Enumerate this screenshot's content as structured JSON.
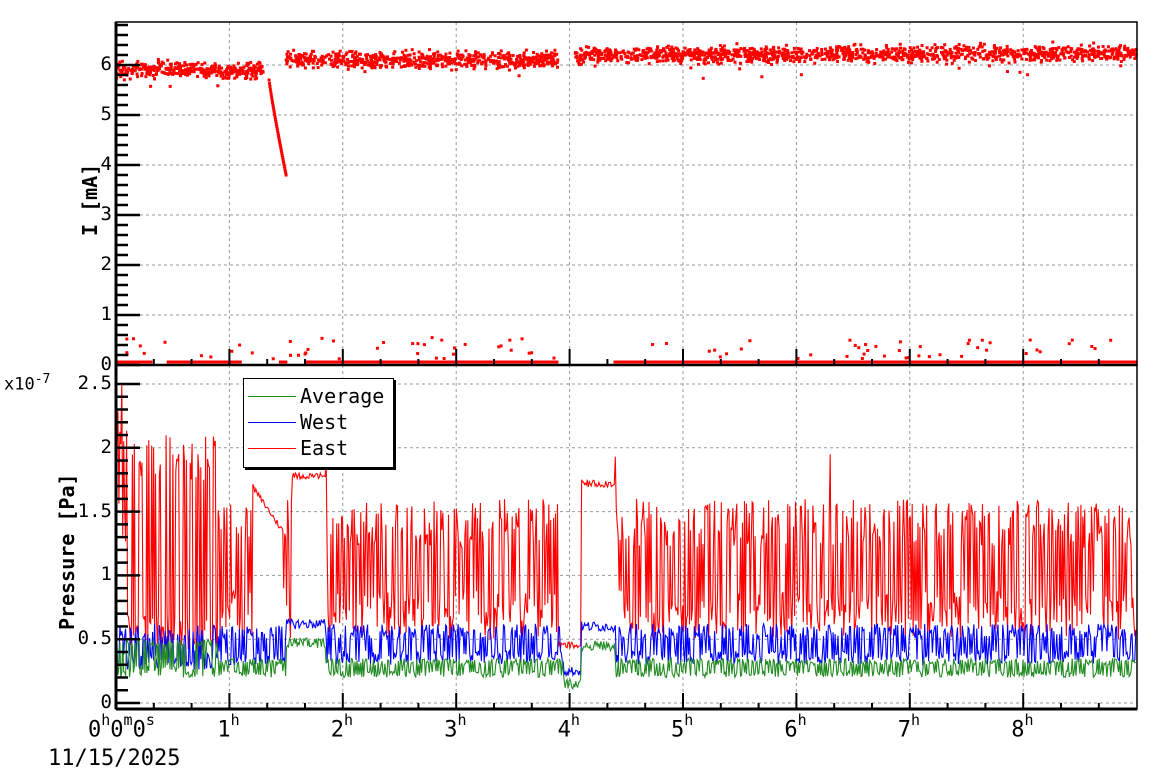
{
  "chart_data": [
    {
      "type": "scatter",
      "title": "",
      "ylabel": "I [mA]",
      "xlabel": "",
      "ylim": [
        0,
        6.86
      ],
      "xlim_hours": [
        0,
        9.0
      ],
      "yticks": [
        "0",
        "1",
        "2",
        "3",
        "4",
        "5",
        "6"
      ],
      "grid": true,
      "color": "#ff0000",
      "series": [
        {
          "name": "I",
          "segments": [
            {
              "x_start_h": 0.0,
              "x_end_h": 1.3,
              "level": 5.95,
              "spread": 0.2,
              "note": "noisy scatter around 5.9-6.1"
            },
            {
              "x_start_h": 1.35,
              "x_end_h": 1.5,
              "level_start": 5.7,
              "level_end": 3.8,
              "note": "linear decay drop"
            },
            {
              "x_start_h": 1.5,
              "x_end_h": 3.9,
              "level": 6.1,
              "spread": 0.2
            },
            {
              "x_start_h": 4.05,
              "x_end_h": 9.0,
              "level": 6.15,
              "spread": 0.2
            }
          ],
          "baseline_points": {
            "level": 0.05,
            "scattered_outliers_max": 0.55
          }
        }
      ]
    },
    {
      "type": "line",
      "title": "",
      "ylabel": "Pressure [Pa]",
      "y_multiplier": "x10^-7",
      "ylim": [
        0,
        2.55
      ],
      "yticks": [
        "0",
        "0.5",
        "1",
        "1.5",
        "2",
        "2.5"
      ],
      "x_ticks": [
        "0h0m0s",
        "1h",
        "2h",
        "3h",
        "4h",
        "5h",
        "6h",
        "7h",
        "8h"
      ],
      "x_date": "11/15/2025",
      "grid": true,
      "legend_position": "top-left",
      "series": [
        {
          "name": "Average",
          "color": "#228b22",
          "typical_low": 0.2,
          "typical_high": 0.35,
          "plateaus": [
            {
              "from_h": 1.5,
              "to_h": 1.85,
              "value": 0.47
            },
            {
              "from_h": 3.95,
              "to_h": 4.1,
              "value": 0.15
            },
            {
              "from_h": 4.1,
              "to_h": 4.4,
              "value": 0.45
            }
          ]
        },
        {
          "name": "West",
          "color": "#0000ff",
          "typical_low": 0.3,
          "typical_high": 0.62,
          "plateaus": [
            {
              "from_h": 1.5,
              "to_h": 1.85,
              "value": 0.62
            },
            {
              "from_h": 3.95,
              "to_h": 4.1,
              "value": 0.25
            },
            {
              "from_h": 4.1,
              "to_h": 4.4,
              "value": 0.6
            }
          ]
        },
        {
          "name": "East",
          "color": "#ff0000",
          "typical_low": 0.5,
          "typical_high": 1.6,
          "plateaus": [
            {
              "from_h": 1.55,
              "to_h": 1.85,
              "value": 1.78
            },
            {
              "from_h": 3.9,
              "to_h": 4.1,
              "value": 0.45
            },
            {
              "from_h": 4.1,
              "to_h": 4.4,
              "value": 1.72
            }
          ],
          "peaks": [
            {
              "x_h": 0.05,
              "value": 2.5
            },
            {
              "x_h": 1.85,
              "value": 1.95
            },
            {
              "x_h": 4.4,
              "value": 1.93
            },
            {
              "x_h": 6.3,
              "value": 1.95
            }
          ]
        }
      ]
    }
  ],
  "top_pad": {
    "y_axis_title": "I [mA]",
    "y_ticks": [
      "0",
      "1",
      "2",
      "3",
      "4",
      "5",
      "6"
    ]
  },
  "bottom_pad": {
    "y_axis_title": "Pressure [Pa]",
    "y_exponent_base": "x10",
    "y_exponent_power": "-7",
    "y_ticks": [
      "0",
      "0.5",
      "1",
      "1.5",
      "2",
      "2.5"
    ],
    "legend": [
      {
        "label": "Average",
        "color": "#228b22"
      },
      {
        "label": "West",
        "color": "#0000ff"
      },
      {
        "label": "East",
        "color": "#ff0000"
      }
    ]
  },
  "x_axis": {
    "origin_main": "0",
    "origin_parts": [
      {
        "v": "0",
        "u": "h"
      },
      {
        "v": "0",
        "u": "m"
      },
      {
        "v": "0",
        "u": "s"
      }
    ],
    "date": "11/15/2025",
    "hour_ticks": [
      {
        "v": "1",
        "u": "h"
      },
      {
        "v": "2",
        "u": "h"
      },
      {
        "v": "3",
        "u": "h"
      },
      {
        "v": "4",
        "u": "h"
      },
      {
        "v": "5",
        "u": "h"
      },
      {
        "v": "6",
        "u": "h"
      },
      {
        "v": "7",
        "u": "h"
      },
      {
        "v": "8",
        "u": "h"
      }
    ]
  }
}
